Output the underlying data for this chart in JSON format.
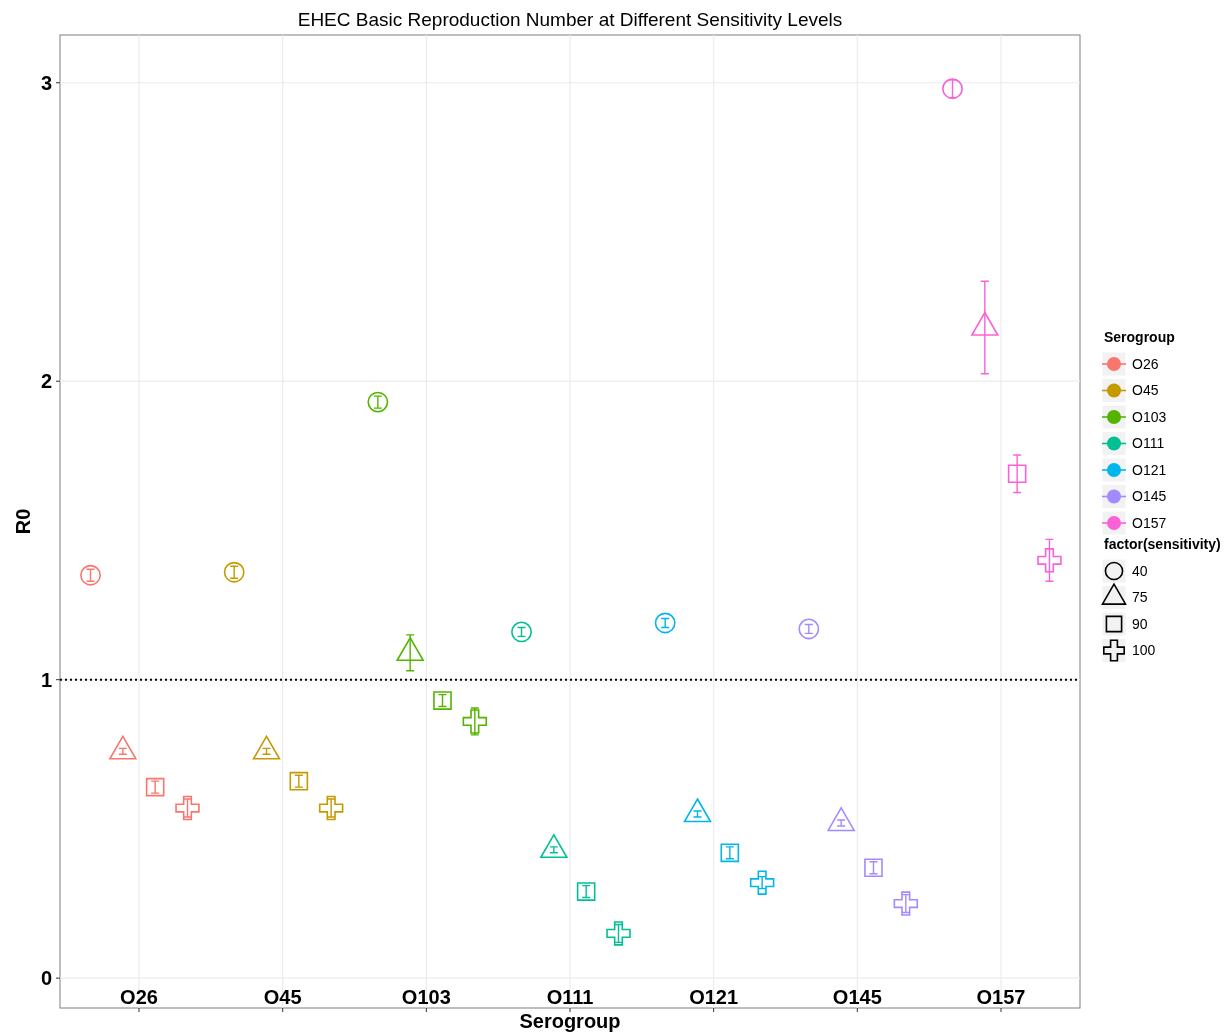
{
  "chart_data": {
    "type": "scatter",
    "title": "EHEC Basic Reproduction Number at Different Sensitivity Levels",
    "xlabel": "Serogroup",
    "ylabel": "R0",
    "legend_title": "Serogroup",
    "annotations": [
      "factor(sensitivity)"
    ],
    "categories": [
      "O26",
      "O45",
      "O103",
      "O111",
      "O121",
      "O145",
      "O157"
    ],
    "ylim": [
      -0.1,
      3.16
    ],
    "yticks": [
      0,
      1,
      2,
      3
    ],
    "grid": true,
    "legend": "right",
    "ref_lines": [
      {
        "axis": "y",
        "value": 1,
        "line_style": "dotted",
        "color": "#000000"
      }
    ],
    "series": [
      {
        "name": "40",
        "marker": "circle",
        "colors": [
          "#f8766d",
          "#c49a00",
          "#53b400",
          "#00c094",
          "#00b6eb",
          "#a58aff",
          "#fb61d7"
        ],
        "values": [
          1.35,
          1.36,
          1.93,
          1.16,
          1.19,
          1.17,
          2.98
        ],
        "errors": [
          0.02,
          0.02,
          0.02,
          0.015,
          0.015,
          0.015,
          0.03
        ]
      },
      {
        "name": "75",
        "marker": "triangle",
        "colors": [
          "#f8766d",
          "#c49a00",
          "#53b400",
          "#00c094",
          "#00b6eb",
          "#a58aff",
          "#fb61d7"
        ],
        "values": [
          0.76,
          0.76,
          1.09,
          0.43,
          0.55,
          0.52,
          2.18
        ],
        "errors": [
          0.01,
          0.01,
          0.06,
          0.01,
          0.01,
          0.01,
          0.155
        ]
      },
      {
        "name": "90",
        "marker": "square",
        "colors": [
          "#f8766d",
          "#c49a00",
          "#53b400",
          "#00c094",
          "#00b6eb",
          "#a58aff",
          "#fb61d7"
        ],
        "values": [
          0.64,
          0.66,
          0.93,
          0.29,
          0.42,
          0.37,
          1.69
        ],
        "errors": [
          0.02,
          0.02,
          0.02,
          0.02,
          0.02,
          0.02,
          0.063
        ]
      },
      {
        "name": "100",
        "marker": "cross",
        "colors": [
          "#f8766d",
          "#c49a00",
          "#53b400",
          "#00c094",
          "#00b6eb",
          "#a58aff",
          "#fb61d7"
        ],
        "values": [
          0.57,
          0.57,
          0.86,
          0.15,
          0.32,
          0.25,
          1.4
        ],
        "errors": [
          0.03,
          0.03,
          0.045,
          0.03,
          0.02,
          0.03,
          0.07
        ]
      }
    ]
  }
}
